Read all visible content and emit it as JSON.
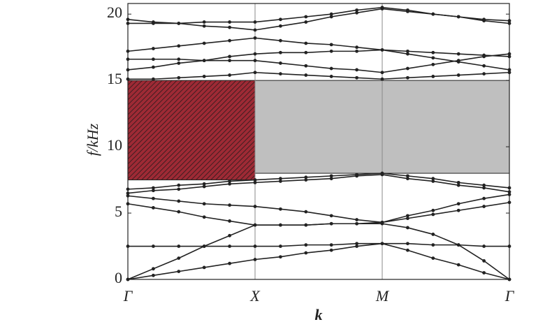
{
  "chart_data": {
    "type": "line",
    "xlabel": "k",
    "ylabel": "f/kHz",
    "x": [
      0,
      0.2,
      0.4,
      0.6,
      0.8,
      1,
      1.2,
      1.4,
      1.6,
      1.8,
      2,
      2.2,
      2.4,
      2.6,
      2.8,
      3
    ],
    "xlim": [
      0,
      3
    ],
    "xticks": [
      {
        "value": 0,
        "label": "Γ"
      },
      {
        "value": 1,
        "label": "X"
      },
      {
        "value": 2,
        "label": "M"
      },
      {
        "value": 3,
        "label": "Γ"
      }
    ],
    "ylim": [
      0,
      20.8
    ],
    "yticks": [
      0,
      5,
      10,
      15,
      20
    ],
    "xgrid": true,
    "regions": [
      {
        "x": [
          0,
          1
        ],
        "y": [
          7.5,
          15.0
        ],
        "color": "#9e2a35",
        "hatch": true
      },
      {
        "x": [
          1,
          3
        ],
        "y": [
          8.0,
          15.0
        ],
        "color": "#bfbfbf",
        "hatch": false
      }
    ],
    "series": [
      {
        "color": "#222222",
        "values": [
          0,
          0.3,
          0.6,
          0.9,
          1.2,
          1.5,
          1.7,
          2.0,
          2.2,
          2.5,
          2.7,
          2.2,
          1.6,
          1.1,
          0.5,
          0
        ]
      },
      {
        "color": "#222222",
        "values": [
          0,
          0.8,
          1.6,
          2.5,
          3.3,
          4.1,
          4.1,
          4.1,
          4.2,
          4.2,
          4.2,
          3.9,
          3.4,
          2.6,
          1.4,
          0
        ]
      },
      {
        "color": "#222222",
        "values": [
          2.5,
          2.5,
          2.5,
          2.5,
          2.5,
          2.5,
          2.5,
          2.6,
          2.6,
          2.7,
          2.7,
          2.7,
          2.6,
          2.6,
          2.5,
          2.5
        ]
      },
      {
        "color": "#222222",
        "values": [
          5.7,
          5.4,
          5.1,
          4.7,
          4.4,
          4.1,
          4.1,
          4.1,
          4.2,
          4.2,
          4.3,
          4.6,
          4.9,
          5.2,
          5.5,
          5.8
        ]
      },
      {
        "color": "#222222",
        "values": [
          6.3,
          6.1,
          5.9,
          5.7,
          5.6,
          5.5,
          5.3,
          5.1,
          4.8,
          4.5,
          4.3,
          4.8,
          5.2,
          5.7,
          6.1,
          6.4
        ]
      },
      {
        "color": "#222222",
        "values": [
          6.5,
          6.7,
          6.8,
          7.0,
          7.2,
          7.3,
          7.4,
          7.5,
          7.6,
          7.8,
          7.9,
          7.6,
          7.4,
          7.1,
          6.9,
          6.6
        ]
      },
      {
        "color": "#222222",
        "values": [
          6.8,
          6.9,
          7.1,
          7.2,
          7.4,
          7.5,
          7.6,
          7.7,
          7.8,
          7.9,
          8.0,
          7.8,
          7.6,
          7.3,
          7.1,
          6.9
        ]
      },
      {
        "color": "#222222",
        "values": [
          15.1,
          15.1,
          15.2,
          15.3,
          15.4,
          15.6,
          15.5,
          15.4,
          15.3,
          15.2,
          15.1,
          15.2,
          15.3,
          15.4,
          15.5,
          15.6
        ]
      },
      {
        "color": "#222222",
        "values": [
          15.8,
          16.0,
          16.3,
          16.5,
          16.8,
          17.0,
          17.1,
          17.1,
          17.2,
          17.2,
          17.3,
          17.0,
          16.7,
          16.4,
          16.1,
          15.8
        ]
      },
      {
        "color": "#222222",
        "values": [
          16.6,
          16.6,
          16.6,
          16.5,
          16.5,
          16.5,
          16.3,
          16.1,
          15.9,
          15.8,
          15.6,
          15.9,
          16.2,
          16.5,
          16.8,
          17.0
        ]
      },
      {
        "color": "#222222",
        "values": [
          17.2,
          17.4,
          17.6,
          17.8,
          18.0,
          18.2,
          18.0,
          17.8,
          17.7,
          17.5,
          17.3,
          17.2,
          17.1,
          17.0,
          16.9,
          16.8
        ]
      },
      {
        "color": "#222222",
        "values": [
          19.3,
          19.3,
          19.3,
          19.4,
          19.4,
          19.4,
          19.6,
          19.8,
          20.0,
          20.3,
          20.5,
          20.3,
          20.0,
          19.8,
          19.5,
          19.3
        ]
      },
      {
        "color": "#222222",
        "values": [
          19.6,
          19.4,
          19.3,
          19.1,
          19.0,
          18.8,
          19.1,
          19.4,
          19.8,
          20.1,
          20.4,
          20.2,
          20.0,
          19.8,
          19.6,
          19.5
        ]
      }
    ]
  }
}
